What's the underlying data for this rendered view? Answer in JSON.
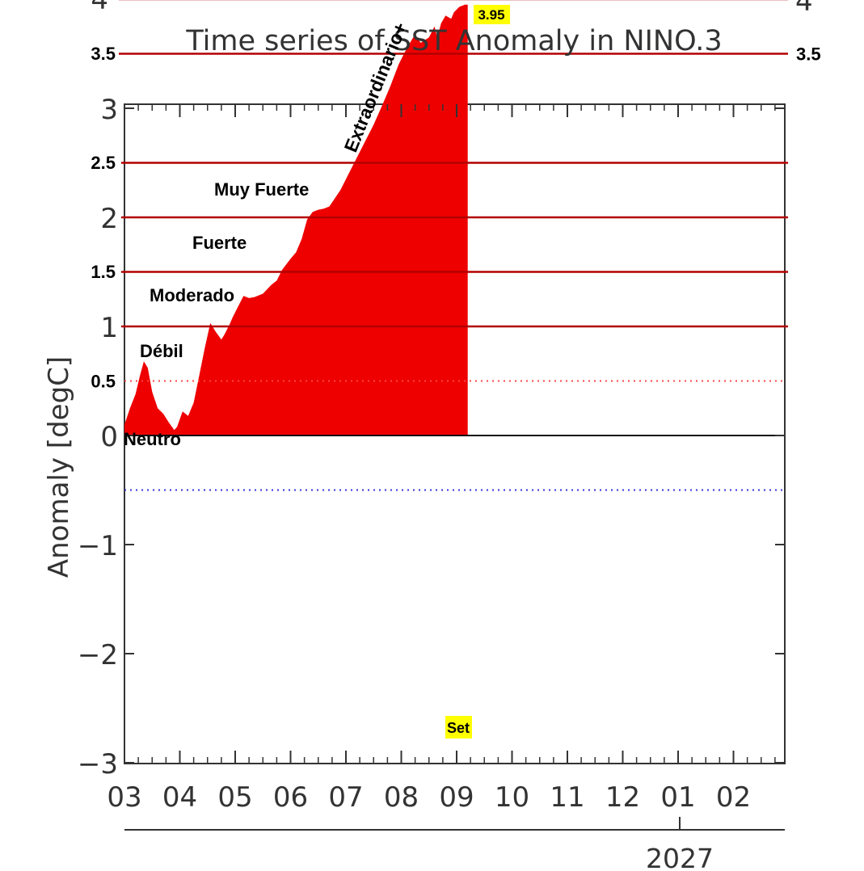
{
  "chart_data": {
    "type": "area",
    "title": "Time series of SST Anomaly in NINO.3",
    "ylabel": "Anomaly [degC]",
    "xlabel": "",
    "ylim": [
      -3,
      4
    ],
    "y_ticks_axis": [
      "3",
      "2",
      "1",
      "0",
      "−1",
      "−2",
      "−3"
    ],
    "x_ticks": [
      "03",
      "04",
      "05",
      "06",
      "07",
      "08",
      "09",
      "10",
      "11",
      "12",
      "01",
      "02"
    ],
    "year_label": "2027",
    "grid": false,
    "fill_color": "#ee0000",
    "series": [
      {
        "x": [
          3.0,
          3.1,
          3.2,
          3.28,
          3.35,
          3.42,
          3.5,
          3.6,
          3.7,
          3.8,
          3.9,
          3.95,
          4.05,
          4.15,
          4.25,
          4.35,
          4.45,
          4.55,
          4.65,
          4.75,
          4.8,
          4.9,
          4.95,
          5.05,
          5.15,
          5.25,
          5.35,
          5.5,
          5.65,
          5.75,
          5.85,
          6.0,
          6.1,
          6.2,
          6.3,
          6.4,
          6.5,
          6.6,
          6.7,
          6.9,
          7.05,
          7.2,
          7.35,
          7.5,
          7.65,
          7.8,
          7.95,
          8.1,
          8.25,
          8.35,
          8.5,
          8.6,
          8.65,
          8.72,
          8.8,
          8.9,
          8.95,
          9.05,
          9.15,
          9.2
        ],
        "values": [
          0.1,
          0.25,
          0.38,
          0.55,
          0.68,
          0.62,
          0.4,
          0.25,
          0.2,
          0.12,
          0.05,
          0.08,
          0.22,
          0.18,
          0.3,
          0.55,
          0.8,
          1.03,
          0.95,
          0.88,
          0.92,
          1.02,
          1.08,
          1.18,
          1.28,
          1.26,
          1.27,
          1.3,
          1.38,
          1.42,
          1.52,
          1.62,
          1.68,
          1.8,
          1.98,
          2.05,
          2.07,
          2.08,
          2.1,
          2.25,
          2.4,
          2.55,
          2.7,
          2.85,
          3.02,
          3.2,
          3.4,
          3.55,
          3.68,
          3.6,
          3.65,
          3.75,
          3.65,
          3.78,
          3.85,
          3.82,
          3.88,
          3.93,
          3.95,
          3.95
        ]
      }
    ],
    "reference_lines": [
      {
        "value": 4,
        "label_left": "4",
        "label_right": "4",
        "color": "#b30000"
      },
      {
        "value": 3.5,
        "label_left": "3.5",
        "label_right": "3.5",
        "color": "#b30000"
      },
      {
        "value": 2.5,
        "label_left": "2.5",
        "color": "#b30000"
      },
      {
        "value": 2,
        "color": "#b30000"
      },
      {
        "value": 1.5,
        "label_left": "1.5",
        "color": "#b30000"
      },
      {
        "value": 1,
        "color": "#b30000"
      }
    ],
    "dotted_lines": [
      {
        "value": 0.5,
        "label_left": "0.5",
        "color": "#ff4444"
      },
      {
        "value": -0.5,
        "color": "#3333dd"
      }
    ],
    "category_labels": [
      "Neutro",
      "Débil",
      "Moderado",
      "Fuerte",
      "Muy Fuerte",
      "Extraordinario+"
    ],
    "peak_label": "3.95",
    "month_highlight_label": "Set",
    "highlight_color": "#ffff00",
    "reference_line_color": "#b30000"
  }
}
